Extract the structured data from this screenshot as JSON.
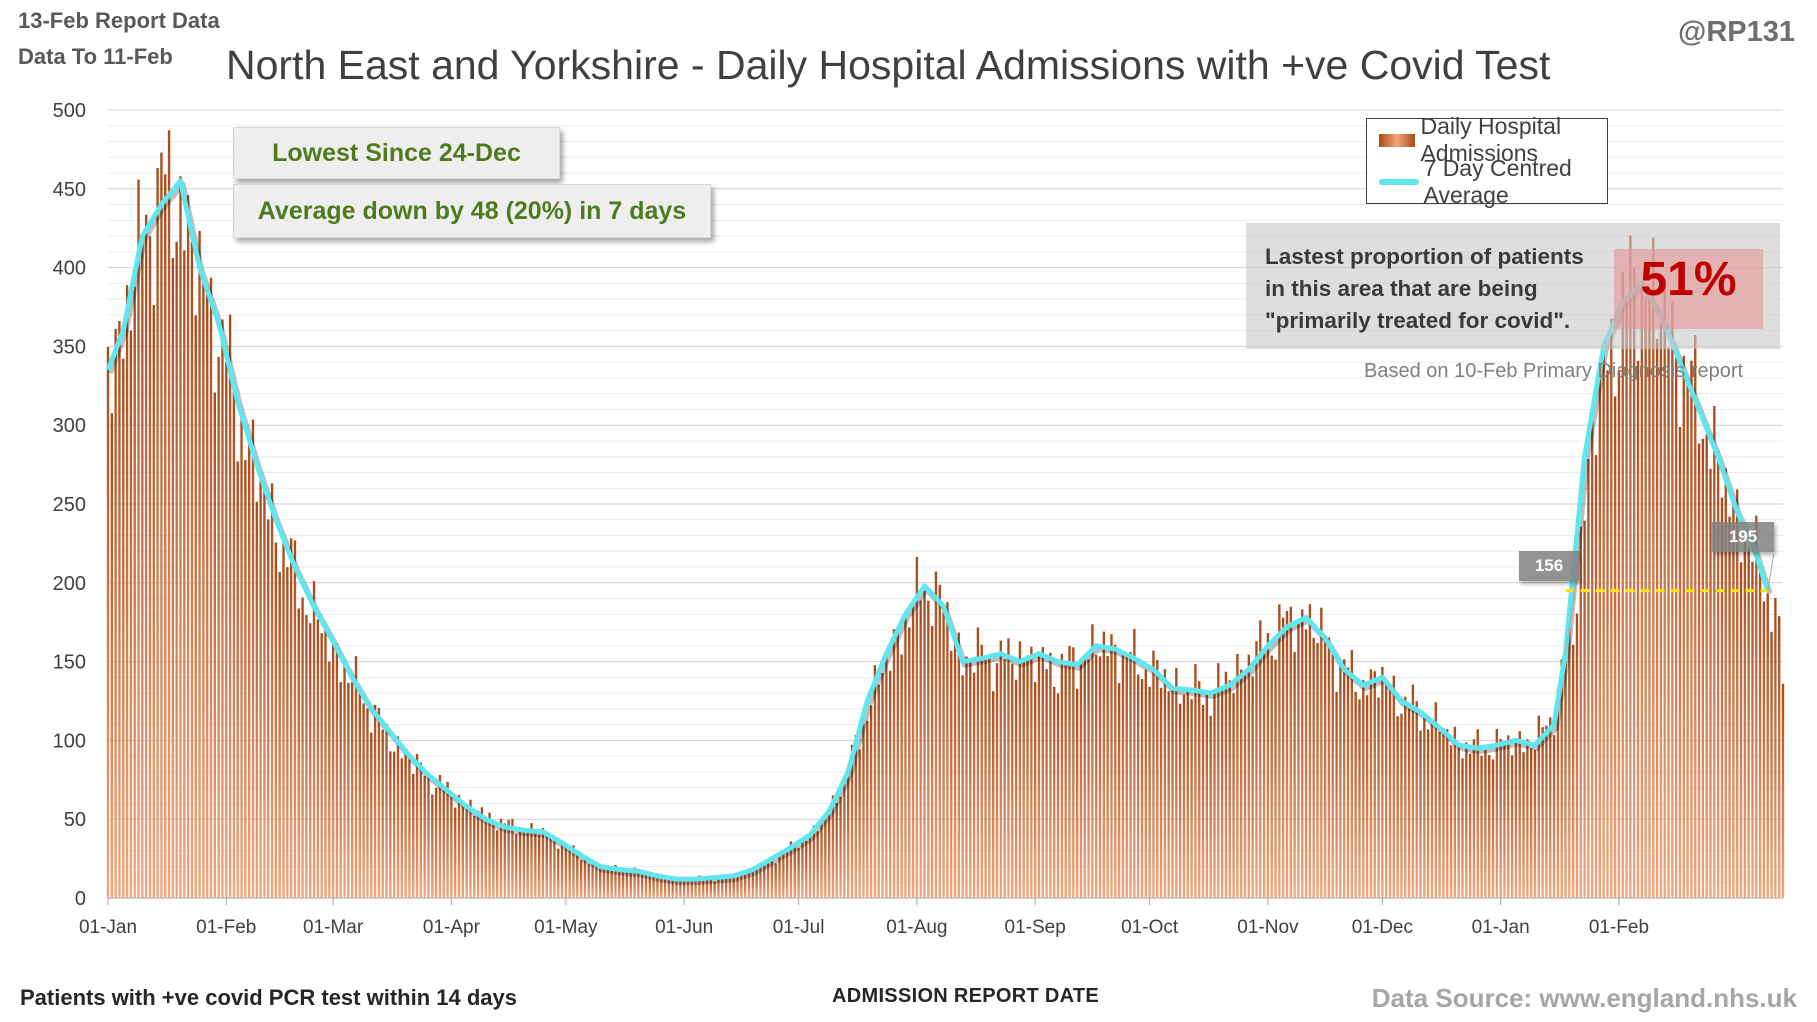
{
  "header": {
    "report_date": "13-Feb Report Data",
    "data_to": "Data To 11-Feb",
    "title": "North East and Yorkshire - Daily Hospital Admissions with +ve Covid Test",
    "handle": "@RP131"
  },
  "callouts": {
    "lowest": "Lowest Since 24-Dec",
    "average": "Average down by 48 (20%) in 7 days"
  },
  "proportion": {
    "text_line1": "Lastest proportion of patients",
    "text_line2": "in this area that are being",
    "text_line3": "\"primarily treated for covid\".",
    "percent": "51%",
    "based_on": "Based on 10-Feb Primary Diagnosis report"
  },
  "value_tags": {
    "prior_week": "156",
    "latest": "195"
  },
  "footer": {
    "left": "Patients with +ve covid PCR test within 14 days",
    "center": "ADMISSION REPORT DATE",
    "right": "Data Source: www.england.nhs.uk"
  },
  "colors": {
    "bar_dark": "#a84a1a",
    "bar_light": "#f2a67a",
    "average_line": "#5fe6ee",
    "reference_line": "#ffe600",
    "callout_text": "#4f7b1f",
    "percent_text": "#c00000"
  },
  "chart_data": {
    "type": "bar",
    "title": "North East and Yorkshire - Daily Hospital Admissions with +ve Covid Test",
    "xlabel": "ADMISSION REPORT DATE",
    "ylabel": "",
    "ylim": [
      0,
      500
    ],
    "yticks": [
      0,
      50,
      100,
      150,
      200,
      250,
      300,
      350,
      400,
      450,
      500
    ],
    "x_start": "01-Jan",
    "x_end": "11-Feb",
    "xtick_labels": [
      "01-Jan",
      "01-Feb",
      "01-Mar",
      "01-Apr",
      "01-May",
      "01-Jun",
      "01-Jul",
      "01-Aug",
      "01-Sep",
      "01-Oct",
      "01-Nov",
      "01-Dec",
      "01-Jan",
      "01-Feb"
    ],
    "grid": true,
    "legend_position": "top-right",
    "series": [
      {
        "name": "Daily Hospital Admissions",
        "type": "bar",
        "anchors": [
          [
            1,
            340
          ],
          [
            5,
            360
          ],
          [
            10,
            420
          ],
          [
            15,
            450
          ],
          [
            20,
            440
          ],
          [
            25,
            395
          ],
          [
            30,
            360
          ],
          [
            35,
            310
          ],
          [
            40,
            270
          ],
          [
            45,
            235
          ],
          [
            50,
            205
          ],
          [
            55,
            180
          ],
          [
            60,
            158
          ],
          [
            65,
            138
          ],
          [
            70,
            120
          ],
          [
            75,
            100
          ],
          [
            80,
            88
          ],
          [
            85,
            77
          ],
          [
            90,
            68
          ],
          [
            95,
            60
          ],
          [
            100,
            52
          ],
          [
            105,
            47
          ],
          [
            110,
            44
          ],
          [
            115,
            42
          ],
          [
            120,
            34
          ],
          [
            125,
            26
          ],
          [
            130,
            20
          ],
          [
            135,
            19
          ],
          [
            140,
            17
          ],
          [
            145,
            14
          ],
          [
            150,
            12
          ],
          [
            155,
            13
          ],
          [
            160,
            12
          ],
          [
            165,
            14
          ],
          [
            170,
            18
          ],
          [
            175,
            24
          ],
          [
            180,
            32
          ],
          [
            185,
            40
          ],
          [
            190,
            55
          ],
          [
            195,
            80
          ],
          [
            200,
            120
          ],
          [
            205,
            150
          ],
          [
            210,
            175
          ],
          [
            215,
            200
          ],
          [
            220,
            185
          ],
          [
            225,
            150
          ],
          [
            230,
            155
          ],
          [
            235,
            150
          ],
          [
            240,
            155
          ],
          [
            245,
            150
          ],
          [
            250,
            145
          ],
          [
            255,
            150
          ],
          [
            260,
            160
          ],
          [
            265,
            158
          ],
          [
            270,
            150
          ],
          [
            275,
            145
          ],
          [
            280,
            135
          ],
          [
            285,
            132
          ],
          [
            290,
            130
          ],
          [
            295,
            140
          ],
          [
            300,
            150
          ],
          [
            305,
            165
          ],
          [
            310,
            175
          ],
          [
            315,
            178
          ],
          [
            320,
            165
          ],
          [
            325,
            145
          ],
          [
            330,
            135
          ],
          [
            335,
            140
          ],
          [
            340,
            125
          ],
          [
            345,
            118
          ],
          [
            350,
            110
          ],
          [
            355,
            98
          ],
          [
            360,
            95
          ],
          [
            365,
            97
          ],
          [
            370,
            100
          ],
          [
            375,
            98
          ],
          [
            380,
            120
          ],
          [
            385,
            170
          ],
          [
            390,
            300
          ],
          [
            395,
            350
          ],
          [
            400,
            385
          ],
          [
            405,
            390
          ],
          [
            410,
            360
          ],
          [
            415,
            330
          ],
          [
            420,
            300
          ],
          [
            425,
            260
          ],
          [
            430,
            230
          ],
          [
            436,
            195
          ],
          [
            438,
            185
          ],
          [
            440,
            140
          ]
        ]
      },
      {
        "name": "7 Day Centred Average",
        "type": "line",
        "anchors": [
          [
            1,
            335
          ],
          [
            5,
            360
          ],
          [
            10,
            420
          ],
          [
            15,
            440
          ],
          [
            20,
            455
          ],
          [
            25,
            400
          ],
          [
            30,
            365
          ],
          [
            35,
            315
          ],
          [
            40,
            275
          ],
          [
            45,
            240
          ],
          [
            50,
            210
          ],
          [
            55,
            185
          ],
          [
            60,
            163
          ],
          [
            65,
            140
          ],
          [
            70,
            120
          ],
          [
            75,
            105
          ],
          [
            80,
            90
          ],
          [
            85,
            78
          ],
          [
            90,
            68
          ],
          [
            95,
            58
          ],
          [
            100,
            50
          ],
          [
            105,
            45
          ],
          [
            110,
            43
          ],
          [
            115,
            42
          ],
          [
            120,
            35
          ],
          [
            125,
            27
          ],
          [
            130,
            20
          ],
          [
            135,
            18
          ],
          [
            140,
            17
          ],
          [
            145,
            14
          ],
          [
            150,
            12
          ],
          [
            155,
            12
          ],
          [
            160,
            13
          ],
          [
            165,
            14
          ],
          [
            170,
            18
          ],
          [
            175,
            25
          ],
          [
            180,
            32
          ],
          [
            185,
            40
          ],
          [
            190,
            55
          ],
          [
            195,
            80
          ],
          [
            200,
            125
          ],
          [
            205,
            155
          ],
          [
            210,
            180
          ],
          [
            215,
            198
          ],
          [
            220,
            185
          ],
          [
            225,
            150
          ],
          [
            230,
            152
          ],
          [
            235,
            155
          ],
          [
            240,
            150
          ],
          [
            245,
            155
          ],
          [
            250,
            150
          ],
          [
            255,
            148
          ],
          [
            260,
            160
          ],
          [
            265,
            158
          ],
          [
            270,
            152
          ],
          [
            275,
            145
          ],
          [
            280,
            133
          ],
          [
            285,
            132
          ],
          [
            290,
            130
          ],
          [
            295,
            135
          ],
          [
            300,
            145
          ],
          [
            305,
            160
          ],
          [
            310,
            172
          ],
          [
            315,
            178
          ],
          [
            320,
            165
          ],
          [
            325,
            145
          ],
          [
            330,
            135
          ],
          [
            335,
            140
          ],
          [
            340,
            125
          ],
          [
            345,
            118
          ],
          [
            350,
            108
          ],
          [
            355,
            97
          ],
          [
            360,
            95
          ],
          [
            365,
            97
          ],
          [
            370,
            100
          ],
          [
            375,
            97
          ],
          [
            380,
            110
          ],
          [
            383,
            156
          ],
          [
            388,
            280
          ],
          [
            393,
            350
          ],
          [
            398,
            378
          ],
          [
            403,
            390
          ],
          [
            408,
            370
          ],
          [
            413,
            340
          ],
          [
            418,
            310
          ],
          [
            423,
            280
          ],
          [
            428,
            245
          ],
          [
            432,
            225
          ],
          [
            436,
            195
          ]
        ]
      }
    ],
    "annotations": [
      "Lowest Since 24-Dec",
      "Average down by 48 (20%) in 7 days",
      "156",
      "195"
    ]
  }
}
